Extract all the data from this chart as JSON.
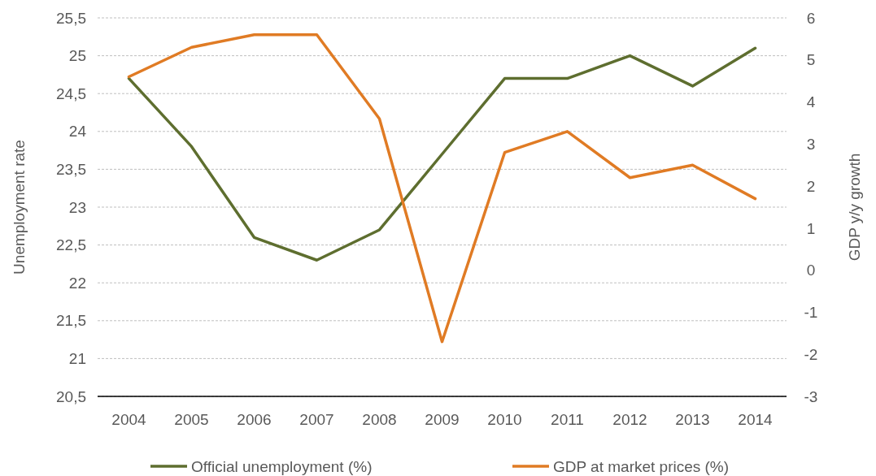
{
  "chart_data": {
    "type": "line",
    "ylabel": "Unemployment  rate",
    "y2label": "GDP y/y growth",
    "categories": [
      "2004",
      "2005",
      "2006",
      "2007",
      "2008",
      "2009",
      "2010",
      "2011",
      "2012",
      "2013",
      "2014"
    ],
    "series": [
      {
        "name": "Official unemployment (%)",
        "color": "#5e6e2f",
        "values": [
          24.7,
          23.8,
          22.6,
          22.3,
          22.7,
          23.7,
          24.7,
          24.7,
          25.0,
          24.6,
          25.1
        ]
      },
      {
        "name": "GDP at market prices (%)",
        "color": "#e07b24",
        "axis": "y2",
        "values": [
          4.6,
          5.3,
          5.6,
          5.6,
          3.6,
          -1.7,
          2.8,
          3.3,
          2.2,
          2.5,
          1.7
        ]
      }
    ],
    "ylim": [
      20.5,
      25.5
    ],
    "yticks": [
      {
        "value": 20.5,
        "label": "20,5"
      },
      21,
      {
        "value": 21.5,
        "label": "21,5"
      },
      22,
      {
        "value": 22.5,
        "label": "22,5"
      },
      23,
      {
        "value": 23.5,
        "label": "23,5"
      },
      24,
      {
        "value": 24.5,
        "label": "24,5"
      },
      25,
      {
        "value": 25.5,
        "label": "25,5"
      }
    ],
    "y2lim": [
      -3,
      6
    ],
    "y2ticks": [
      -3,
      -2,
      -1,
      0,
      1,
      2,
      3,
      4,
      5,
      6
    ],
    "grid": "y",
    "legend": "bottom",
    "marker": "none",
    "line_style": "solid"
  }
}
